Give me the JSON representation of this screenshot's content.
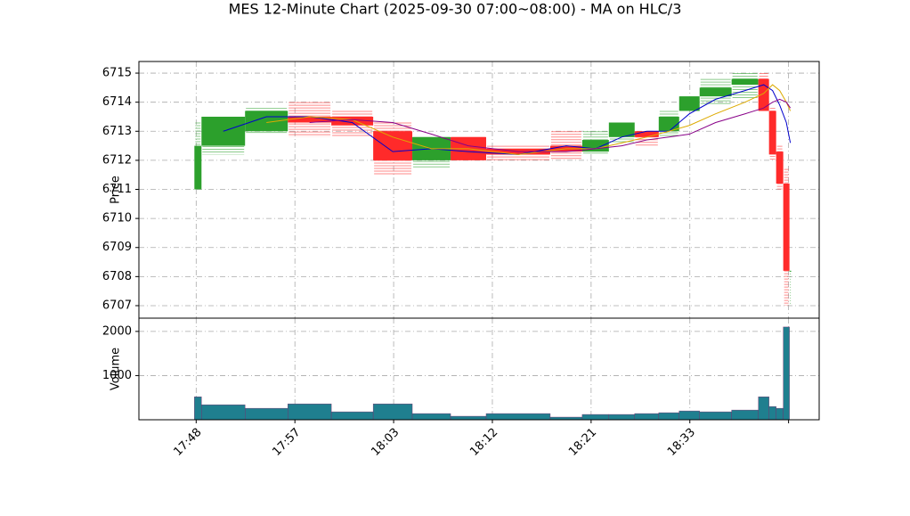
{
  "chart_data": {
    "type": "candlestick",
    "title": "MES 12-Minute Chart (2025-09-30 07:00~08:00) - MA on HLC/3",
    "ylabel": "Price",
    "volume_label": "Volume",
    "x": [
      -0.18,
      0.54,
      4.95,
      9.28,
      13.69,
      17.93,
      21.89,
      25.77,
      29.37,
      35.86,
      39.1,
      41.8,
      44.41,
      46.85,
      48.92,
      50.99,
      54.23,
      56.94,
      58.02,
      58.74,
      59.46,
      60.09
    ],
    "open": [
      6711.0,
      6712.5,
      6713.0,
      6713.5,
      6713.5,
      6713.0,
      6712.0,
      6712.8,
      6712.4,
      6712.5,
      6712.3,
      6712.8,
      6713.0,
      6713.0,
      6713.7,
      6714.2,
      6714.6,
      6714.8,
      6713.7,
      6712.3,
      6711.2,
      6708.2
    ],
    "high": [
      6713.3,
      6713.5,
      6713.8,
      6714.0,
      6713.7,
      6713.3,
      6712.8,
      6712.8,
      6712.5,
      6713.0,
      6713.0,
      6713.3,
      6713.0,
      6713.7,
      6714.2,
      6714.8,
      6715.0,
      6715.0,
      6713.8,
      6712.5,
      6711.7,
      6708.2
    ],
    "low": [
      6711.0,
      6712.2,
      6712.9,
      6712.8,
      6712.8,
      6711.5,
      6711.7,
      6712.0,
      6712.0,
      6712.0,
      6712.2,
      6712.6,
      6712.5,
      6712.8,
      6713.7,
      6713.9,
      6714.1,
      6713.7,
      6712.0,
      6711.0,
      6707.0,
      6707.0
    ],
    "close": [
      6712.5,
      6713.5,
      6713.7,
      6713.3,
      6713.2,
      6712.0,
      6712.8,
      6712.0,
      6712.2,
      6712.3,
      6712.7,
      6713.3,
      6712.8,
      6713.5,
      6714.2,
      6714.5,
      6714.8,
      6713.7,
      6712.2,
      6711.2,
      6708.2,
      6708.2
    ],
    "volume": [
      520,
      340,
      260,
      360,
      180,
      360,
      140,
      80,
      140,
      60,
      120,
      120,
      140,
      160,
      200,
      180,
      220,
      520,
      300,
      260,
      2100,
      0
    ],
    "up_color": "#2ca02c",
    "down_color": "#ff2a2a",
    "volume_color": "#1f7f8f",
    "series": [
      {
        "color": "#0000cc",
        "values": [
          null,
          6713.0,
          6713.5,
          6713.5,
          6713.3,
          6712.3,
          6712.4,
          6712.3,
          6712.2,
          6712.5,
          6712.4,
          6712.8,
          6713.0,
          6713.0,
          6713.6,
          6714.1,
          6714.4,
          6714.6,
          6714.4,
          6713.9,
          6713.3,
          6712.6
        ]
      },
      {
        "color": "#ddaa00",
        "values": [
          null,
          null,
          6713.3,
          6713.5,
          6713.4,
          6712.8,
          6712.4,
          6712.4,
          6712.2,
          6712.4,
          6712.4,
          6712.6,
          6712.8,
          6713.0,
          6713.2,
          6713.6,
          6714.0,
          6714.3,
          6714.6,
          6714.4,
          6714.0,
          6713.7
        ]
      },
      {
        "color": "#880088",
        "values": [
          null,
          null,
          null,
          6713.3,
          6713.4,
          6713.3,
          6712.9,
          6712.5,
          6712.3,
          6712.3,
          6712.4,
          6712.5,
          6712.7,
          6712.8,
          6712.9,
          6713.3,
          6713.6,
          6713.8,
          6714.0,
          6714.1,
          6714.0,
          6713.8
        ]
      }
    ],
    "xlim": [
      -5.8,
      63.1
    ],
    "xticks": [
      {
        "value": 0,
        "label": "17:48"
      },
      {
        "value": 10,
        "label": "17:57"
      },
      {
        "value": 20,
        "label": "18:03"
      },
      {
        "value": 30,
        "label": "18:12"
      },
      {
        "value": 40,
        "label": "18:21"
      },
      {
        "value": 50,
        "label": "18:33"
      },
      {
        "value": 60
      }
    ],
    "ylim": [
      6706.57,
      6715.4
    ],
    "yticks": [
      6707,
      6708,
      6709,
      6710,
      6711,
      6712,
      6713,
      6714,
      6715
    ],
    "volume_ylim": [
      0,
      2300
    ],
    "volume_yticks": [
      1000,
      2000
    ],
    "grid": true
  }
}
